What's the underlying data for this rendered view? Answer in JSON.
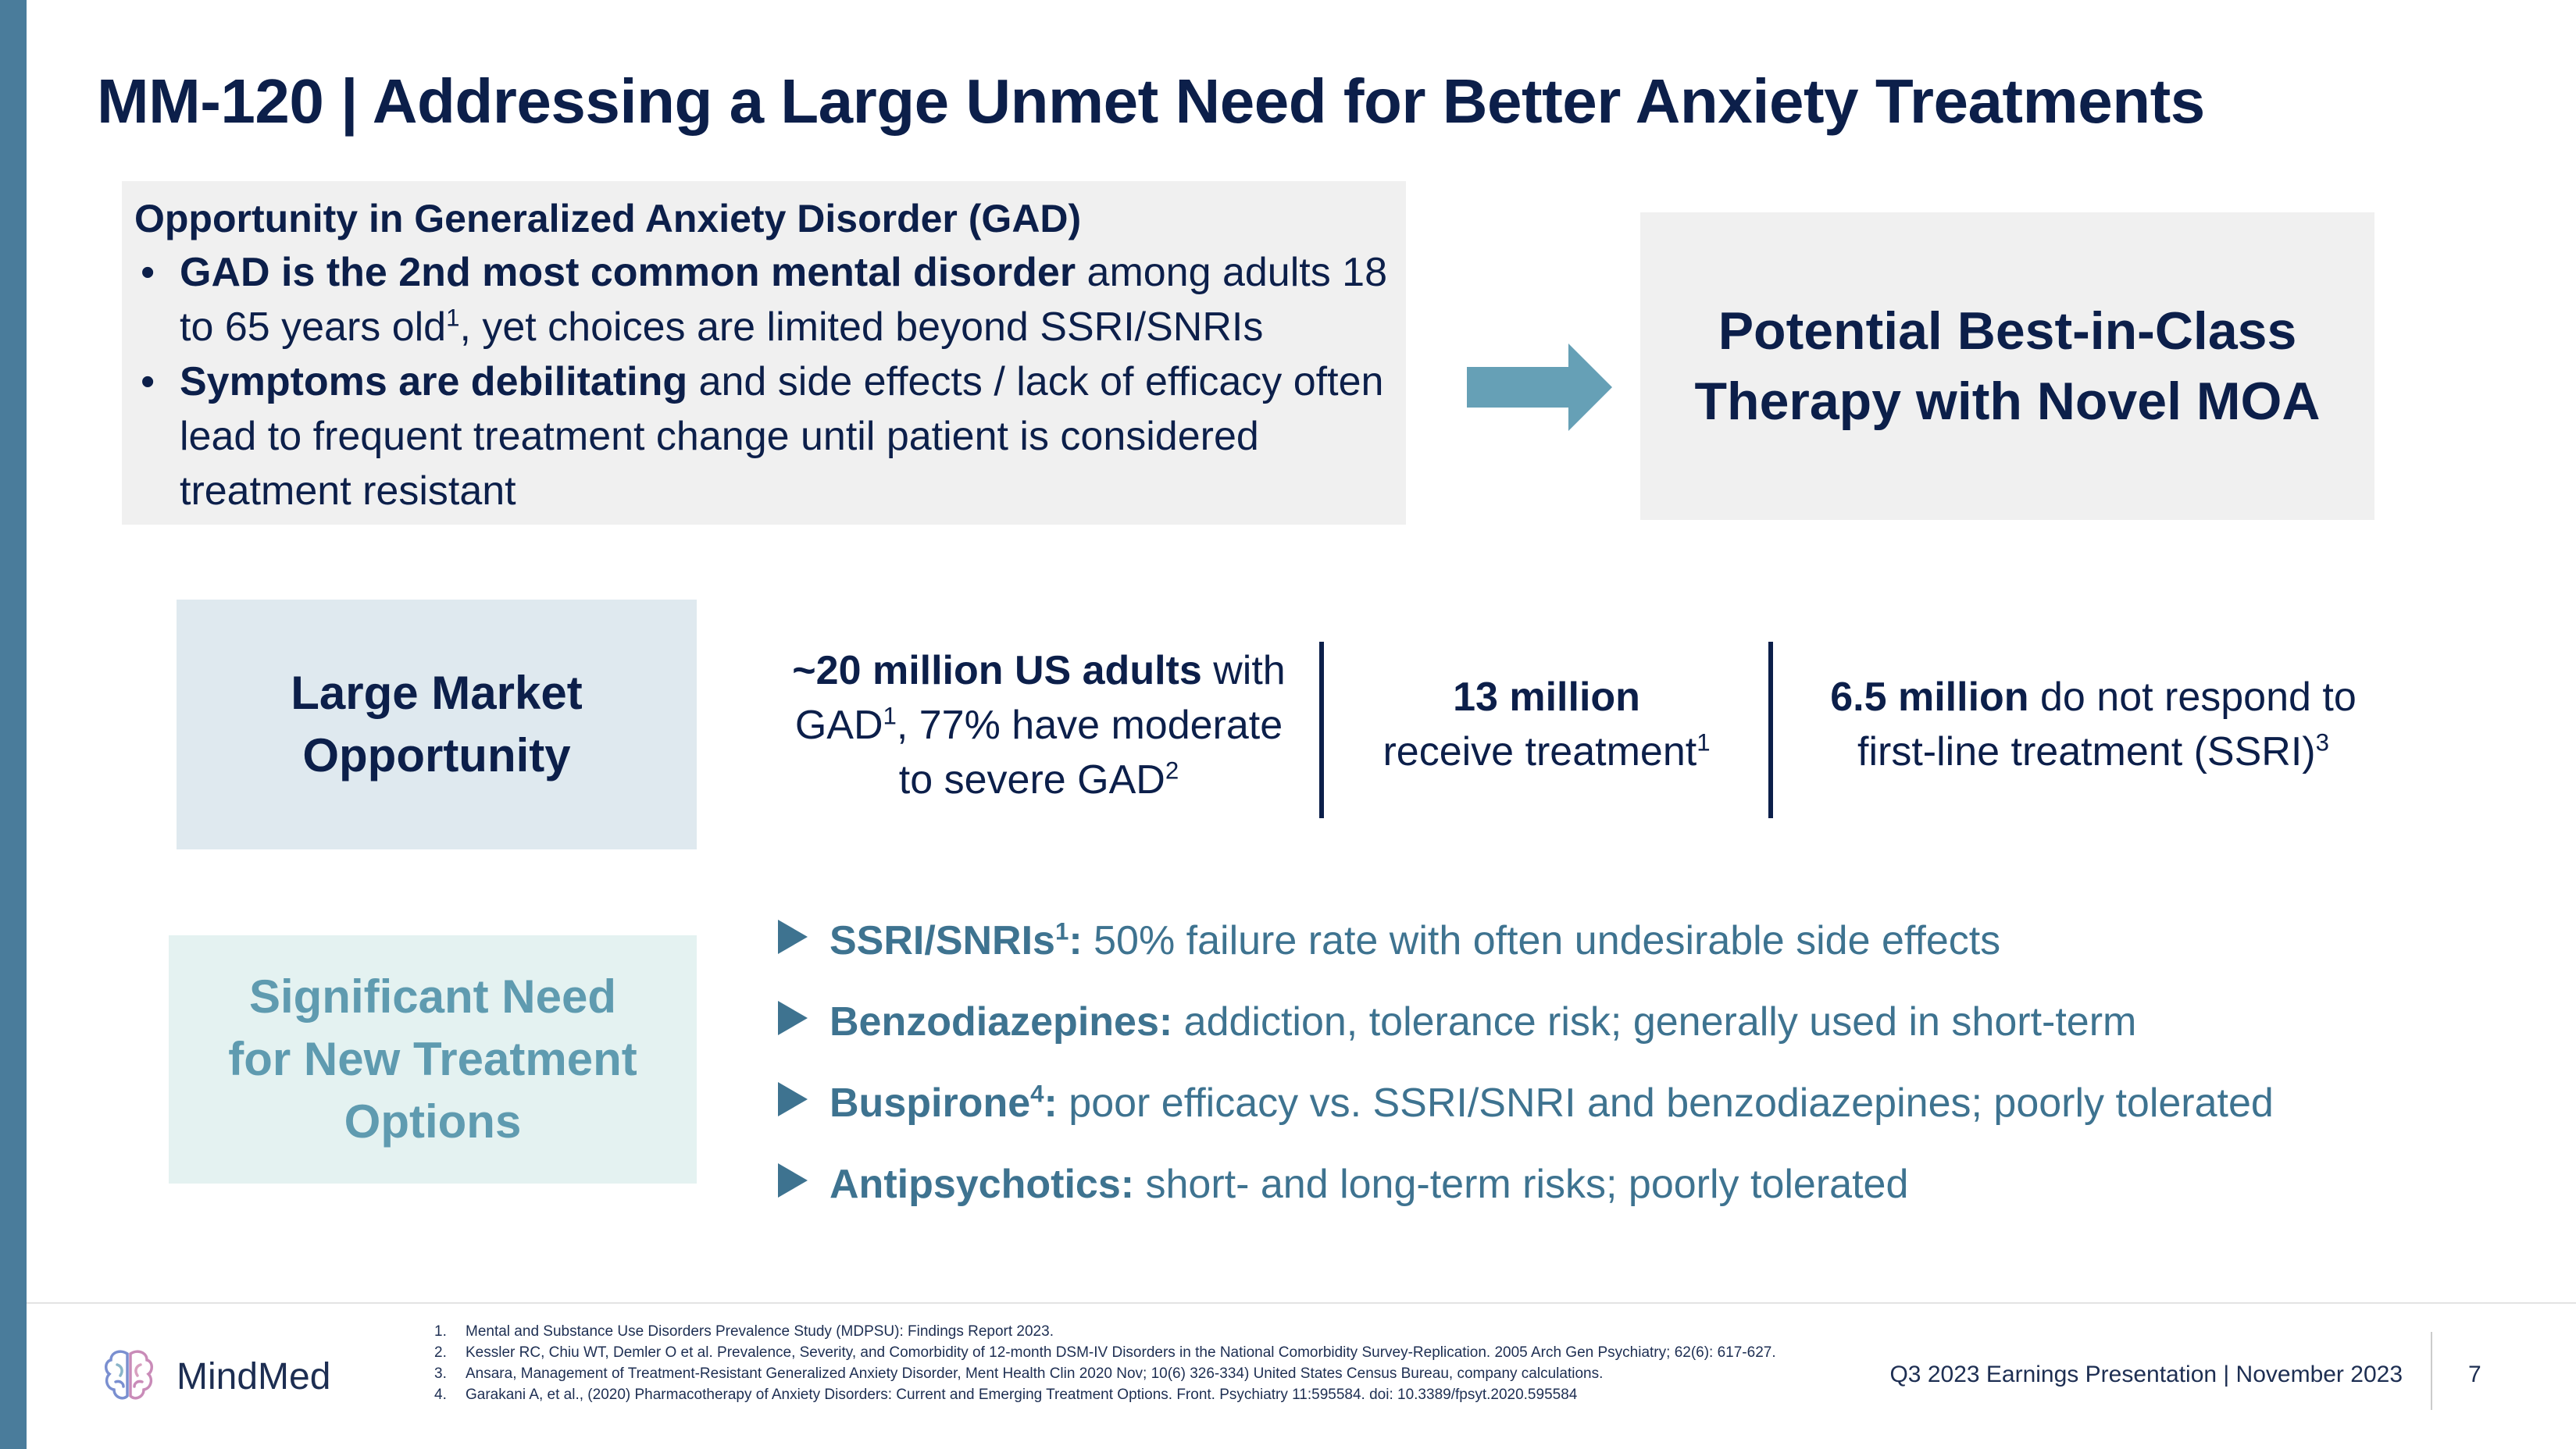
{
  "title": "MM-120 | Addressing a Large Unmet Need for Better Anxiety Treatments",
  "opportunity": {
    "heading": "Opportunity in Generalized Anxiety Disorder (GAD)",
    "bullets": [
      {
        "bold": "GAD is the 2nd most common mental disorder",
        "text_a": " among adults 18 to 65 years old",
        "sup": "1",
        "text_b": ", yet choices are limited beyond SSRI/SNRIs"
      },
      {
        "bold": "Symptoms are debilitating",
        "text_a": " and side effects / lack of efficacy often lead to frequent treatment change until patient is considered treatment resistant"
      }
    ]
  },
  "best_in_class": {
    "line1": "Potential Best-in-Class",
    "line2": "Therapy with Novel MOA"
  },
  "market": {
    "line1": "Large Market",
    "line2": "Opportunity"
  },
  "stats": [
    {
      "bold": "~20 million US adults",
      "text_a": " with GAD",
      "sup_a": "1",
      "text_b": ", 77% have moderate to severe GAD",
      "sup_b": "2"
    },
    {
      "bold": "13 million",
      "text_a": "receive treatment",
      "sup_a": "1"
    },
    {
      "bold": "6.5 million",
      "text_a": " do not respond to first-line treatment (SSRI)",
      "sup_a": "3"
    }
  ],
  "need": {
    "line1": "Significant Need",
    "line2": "for New Treatment",
    "line3": "Options"
  },
  "treatments": [
    {
      "name": "SSRI/SNRIs",
      "sup": "1",
      "colon": ":",
      "text": " 50% failure rate with often undesirable side effects"
    },
    {
      "name": "Benzodiazepines",
      "sup": "",
      "colon": ":",
      "text": " addiction, tolerance risk; generally used in short-term"
    },
    {
      "name": "Buspirone",
      "sup": "4",
      "colon": ":",
      "text": " poor efficacy vs. SSRI/SNRI and benzodiazepines; poorly tolerated"
    },
    {
      "name": "Antipsychotics",
      "sup": "",
      "colon": ":",
      "text": " short- and long-term risks; poorly tolerated"
    }
  ],
  "footer": {
    "logo": "MindMed",
    "references": [
      {
        "num": "1.",
        "text": "Mental and Substance Use Disorders Prevalence Study (MDPSU): Findings Report 2023."
      },
      {
        "num": "2.",
        "text": "Kessler RC, Chiu WT, Demler O et al. Prevalence, Severity, and Comorbidity of 12-month DSM-IV Disorders in the National Comorbidity Survey-Replication. 2005 Arch Gen Psychiatry; 62(6): 617-627."
      },
      {
        "num": "3.",
        "text": "Ansara, Management of Treatment-Resistant Generalized Anxiety Disorder, Ment Health Clin 2020 Nov; 10(6) 326-334) United States Census Bureau, company calculations."
      },
      {
        "num": "4.",
        "text": "Garakani A, et al., (2020) Pharmacotherapy of Anxiety Disorders: Current and Emerging Treatment Options. Front. Psychiatry 11:595584. doi: 10.3389/fpsyt.2020.595584"
      }
    ],
    "presentation": "Q3 2023 Earnings Presentation | November 2023",
    "page_number": "7"
  },
  "colors": {
    "navy": "#0c1f4a",
    "teal_text": "#3e7390",
    "left_bar": "#4a7c9b",
    "arrow": "#66a0b6"
  }
}
